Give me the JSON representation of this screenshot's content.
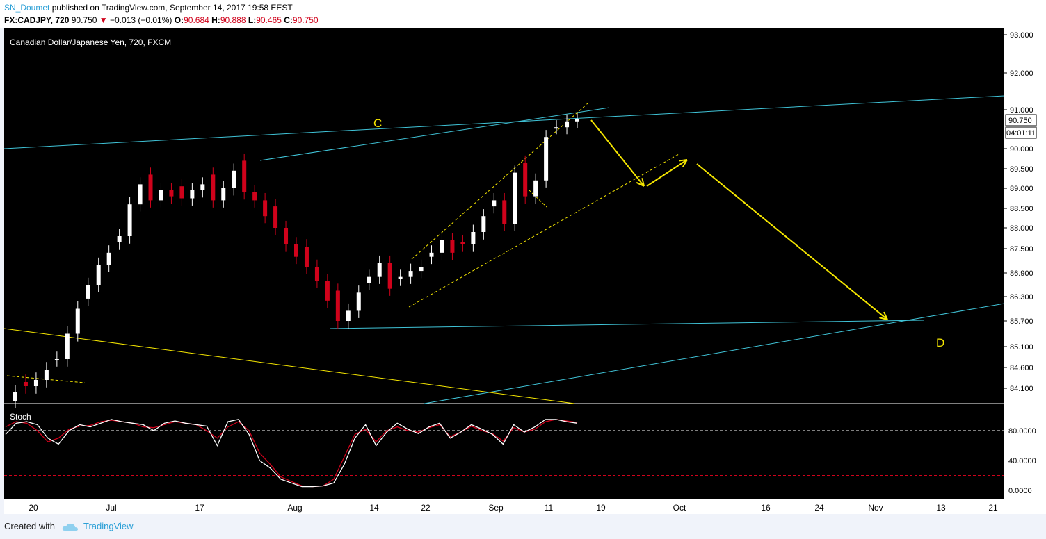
{
  "header": {
    "user": "SN_Doumet",
    "published_text": "published on TradingView.com, September 14, 2017 19:58 EEST",
    "symbol": "FX:CADJPY, 720",
    "last": "90.750",
    "change_arrow": "▼",
    "change": "−0.013 (−0.01%)",
    "o_label": "O:",
    "o_value": "90.684",
    "h_label": "H:",
    "h_value": "90.888",
    "l_label": "L:",
    "l_value": "90.465",
    "c_label": "C:",
    "c_value": "90.750"
  },
  "footer": {
    "created_with": "Created with",
    "brand": "TradingView"
  },
  "colors": {
    "background": "#000000",
    "up": "#ffffff",
    "down": "#d0021b",
    "trendline": "#40c4d8",
    "projection": "#f5e600",
    "stoch_k": "#ffffff",
    "stoch_d": "#d0021b"
  },
  "chart_data": {
    "type": "candlestick",
    "title": "Canadian Dollar/Japanese Yen, 720, FXCM",
    "price_axis_ticks": [
      "93.000",
      "92.000",
      "91.000",
      "90.000",
      "89.500",
      "89.000",
      "88.500",
      "88.000",
      "87.500",
      "86.900",
      "86.300",
      "85.700",
      "85.100",
      "84.600",
      "84.100"
    ],
    "price_range": [
      83.9,
      93.2
    ],
    "current_price_label": "90.750",
    "countdown_label": "04:01:11",
    "x_axis_ticks": [
      "20",
      "Jul",
      "17",
      "Aug",
      "14",
      "22",
      "Sep",
      "11",
      "19",
      "Oct",
      "16",
      "24",
      "Nov",
      "13",
      "21"
    ],
    "annotations": [
      {
        "text": "C"
      },
      {
        "text": "D"
      }
    ],
    "close_series": [
      84.0,
      84.15,
      84.3,
      84.55,
      84.8,
      85.4,
      86.0,
      86.6,
      87.1,
      87.4,
      87.8,
      88.6,
      89.1,
      88.7,
      88.95,
      88.8,
      88.75,
      88.95,
      89.1,
      88.7,
      89.0,
      89.45,
      88.9,
      88.7,
      88.3,
      88.0,
      87.6,
      87.3,
      87.05,
      86.7,
      86.2,
      85.7,
      85.95,
      86.4,
      86.8,
      87.15,
      86.5,
      86.8,
      86.95,
      87.05,
      87.4,
      87.7,
      87.4,
      87.6,
      87.9,
      88.3,
      88.7,
      88.1,
      89.4,
      88.8,
      89.2,
      90.3,
      90.55,
      90.7,
      90.75
    ],
    "stoch": {
      "name": "Stoch",
      "levels": [
        80,
        20
      ],
      "axis_ticks": [
        "80.0000",
        "40.0000",
        "0.0000"
      ],
      "k": [
        75,
        90,
        92,
        88,
        70,
        62,
        80,
        88,
        85,
        90,
        95,
        92,
        90,
        88,
        80,
        90,
        93,
        90,
        88,
        86,
        60,
        92,
        95,
        75,
        40,
        30,
        15,
        10,
        5,
        5,
        6,
        10,
        35,
        70,
        88,
        60,
        78,
        90,
        82,
        76,
        85,
        90,
        70,
        78,
        88,
        82,
        75,
        62,
        88,
        78,
        85,
        95,
        95,
        92,
        90
      ],
      "d": [
        85,
        92,
        90,
        80,
        65,
        70,
        82,
        86,
        87,
        92,
        94,
        92,
        90,
        85,
        84,
        88,
        92,
        90,
        88,
        80,
        70,
        85,
        92,
        80,
        50,
        35,
        18,
        12,
        6,
        5,
        6,
        15,
        45,
        75,
        82,
        65,
        80,
        85,
        80,
        78,
        84,
        88,
        72,
        78,
        86,
        80,
        76,
        66,
        84,
        78,
        82,
        92,
        95,
        93,
        91
      ]
    }
  }
}
